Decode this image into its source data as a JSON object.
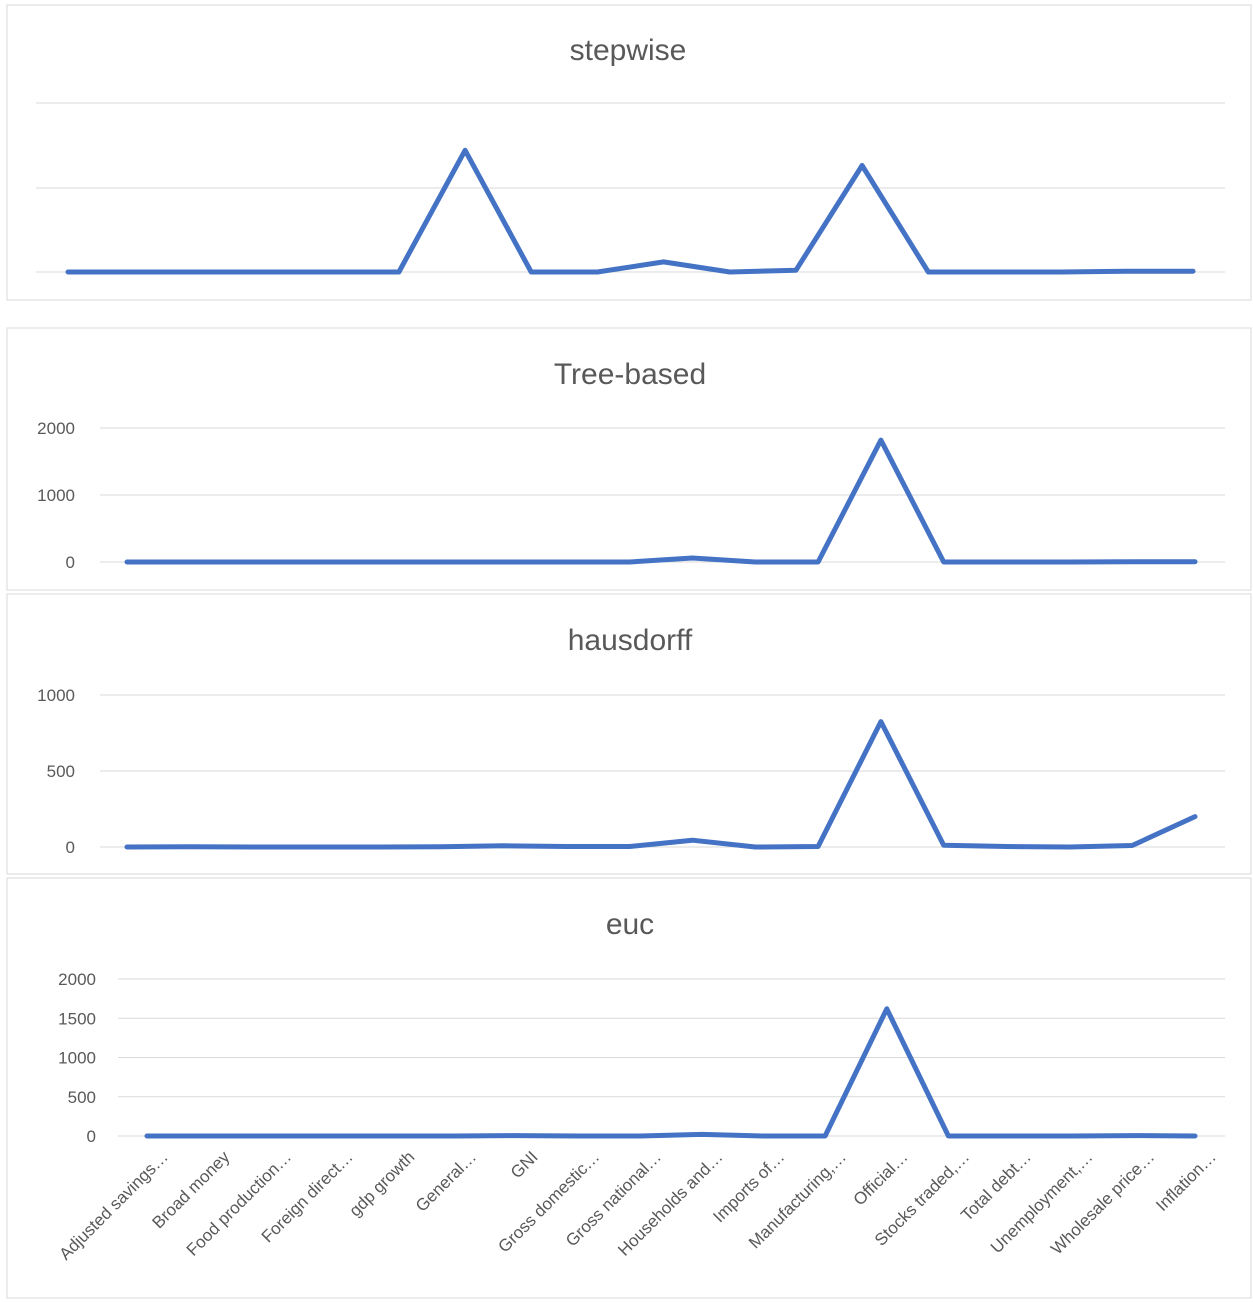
{
  "chart_data": [
    {
      "type": "line",
      "title": "stepwise",
      "ylim": [
        0,
        1.0
      ],
      "y_ticks": [],
      "grid": true,
      "series": [
        {
          "color": "#4472C4",
          "values": [
            0,
            0,
            0,
            0,
            0,
            0,
            0.72,
            0,
            0,
            0.06,
            0,
            0.01,
            0.63,
            0,
            0,
            0,
            0.005,
            0.005
          ]
        }
      ]
    },
    {
      "type": "line",
      "title": "Tree-based",
      "ylim": [
        0,
        2000
      ],
      "y_ticks": [
        "2000",
        "1000",
        "0"
      ],
      "grid": true,
      "series": [
        {
          "color": "#4472C4",
          "values": [
            0,
            0,
            0,
            0,
            0,
            0,
            0,
            0,
            0,
            60,
            0,
            0,
            1820,
            0,
            0,
            0,
            5,
            5
          ]
        }
      ]
    },
    {
      "type": "line",
      "title": "hausdorff",
      "ylim": [
        0,
        1000
      ],
      "y_ticks": [
        "1000",
        "500",
        "0"
      ],
      "grid": true,
      "series": [
        {
          "color": "#4472C4",
          "values": [
            0,
            2,
            0,
            0,
            0,
            2,
            8,
            3,
            3,
            45,
            0,
            3,
            825,
            12,
            3,
            0,
            10,
            200
          ]
        }
      ]
    },
    {
      "type": "line",
      "title": "euc",
      "ylim": [
        0,
        2000
      ],
      "y_ticks": [
        "2000",
        "1500",
        "1000",
        "500",
        "0"
      ],
      "grid": true,
      "categories": [
        "Adjusted savings…",
        "Broad money",
        "Food production…",
        "Foreign direct…",
        "gdp growth",
        "General…",
        "GNI",
        "Gross domestic…",
        "Gross national…",
        "Households and…",
        "Imports of…",
        "Manufacturing,…",
        "Official…",
        "Stocks traded,…",
        "Total debt…",
        "Unemployment,…",
        "Wholesale price…",
        "Inflation…"
      ],
      "series": [
        {
          "color": "#4472C4",
          "values": [
            0,
            0,
            0,
            0,
            0,
            0,
            5,
            0,
            0,
            20,
            0,
            0,
            1620,
            0,
            0,
            0,
            5,
            0
          ]
        }
      ]
    }
  ]
}
